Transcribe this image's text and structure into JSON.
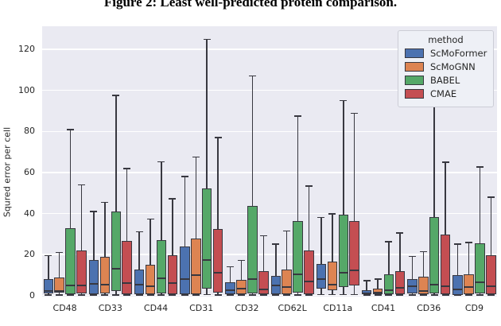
{
  "figure": {
    "title": "Figure 2: Least well-predicted protein comparison."
  },
  "chart_data": {
    "type": "boxplot",
    "title": "Figure 2: Least well-predicted protein comparison.",
    "ylabel": "Squred error per cell",
    "xlabel": "",
    "ylim": [
      -0.5,
      131.3
    ],
    "yticks": [
      0,
      20,
      40,
      60,
      80,
      100,
      120
    ],
    "grid": "horizontal-white-on-gray",
    "legend_title": "method",
    "legend_position": "upper-right",
    "categories": [
      "CD48",
      "CD33",
      "CD44",
      "CD31",
      "CD32",
      "CD62L",
      "CD11a",
      "CD41",
      "CD36",
      "CD9"
    ],
    "box_format": [
      "whisker_low",
      "q1",
      "median",
      "q3",
      "whisker_high"
    ],
    "series": [
      {
        "name": "ScMoFormer",
        "color": "#4c72b0",
        "boxes": [
          [
            0.3,
            1.0,
            2.1,
            7.9,
            19.5
          ],
          [
            0.3,
            0.8,
            5.7,
            17.3,
            41
          ],
          [
            0.3,
            0.8,
            5.3,
            12.6,
            31
          ],
          [
            0.3,
            0.5,
            7.9,
            24,
            58
          ],
          [
            0.2,
            0.8,
            2.7,
            6.3,
            14
          ],
          [
            0.3,
            0.8,
            4.9,
            9.4,
            25
          ],
          [
            0.5,
            3.4,
            7.9,
            15.2,
            38
          ],
          [
            0.2,
            0.5,
            1.2,
            2.7,
            7.2
          ],
          [
            0.3,
            0.9,
            4.4,
            8.1,
            19
          ],
          [
            0.3,
            0.4,
            3.0,
            9.8,
            25
          ]
        ]
      },
      {
        "name": "ScMoGNN",
        "color": "#dd8452",
        "boxes": [
          [
            0.3,
            1.4,
            2.4,
            8.9,
            21
          ],
          [
            0.3,
            1.2,
            5.3,
            18.8,
            45.5
          ],
          [
            0.3,
            0.5,
            4.6,
            15,
            37.3
          ],
          [
            0.3,
            0.5,
            9.8,
            27.9,
            67.6
          ],
          [
            0.2,
            0.5,
            3.4,
            7.5,
            17.2
          ],
          [
            0.3,
            0.5,
            4.0,
            12.6,
            31.4
          ],
          [
            0.5,
            2.7,
            5.2,
            16.5,
            39.8
          ],
          [
            0.2,
            0.5,
            1.3,
            3.4,
            8.1
          ],
          [
            0.3,
            0.7,
            2.1,
            9.2,
            21.4
          ],
          [
            0.3,
            0.5,
            4.0,
            10.5,
            25.9
          ]
        ]
      },
      {
        "name": "BABEL",
        "color": "#55a868",
        "boxes": [
          [
            0.3,
            0.8,
            4.9,
            33,
            81
          ],
          [
            0.3,
            2.1,
            13,
            40.8,
            97.5
          ],
          [
            0.3,
            1.0,
            8.5,
            27.2,
            65.3
          ],
          [
            0.5,
            3.4,
            17.5,
            52.4,
            125
          ],
          [
            0.3,
            1.0,
            8.1,
            43.6,
            107
          ],
          [
            0.3,
            1.4,
            10.5,
            36.3,
            87.5
          ],
          [
            0.5,
            4.0,
            11.3,
            39.5,
            95
          ],
          [
            0.2,
            0.7,
            2.7,
            10.5,
            26.2
          ],
          [
            0.3,
            1.0,
            5.3,
            38.2,
            93
          ],
          [
            0.3,
            1.0,
            6.6,
            25.6,
            62.7
          ]
        ]
      },
      {
        "name": "CMAE",
        "color": "#c44e52",
        "boxes": [
          [
            0.3,
            1.2,
            4.9,
            22,
            54
          ],
          [
            0.3,
            0.5,
            6.2,
            26.5,
            62
          ],
          [
            0.3,
            0.5,
            5.9,
            19.7,
            47.2
          ],
          [
            0.3,
            1.4,
            11.1,
            32.4,
            77
          ],
          [
            0.2,
            0.5,
            3.0,
            12,
            29.2
          ],
          [
            0.3,
            0.5,
            6.9,
            21.8,
            53.3
          ],
          [
            0.5,
            4.9,
            12.4,
            36.5,
            88.8
          ],
          [
            0.2,
            0.7,
            3.6,
            12,
            30.5
          ],
          [
            0.3,
            0.5,
            4.4,
            29.8,
            65
          ],
          [
            0.3,
            0.5,
            4.6,
            19.7,
            48
          ]
        ]
      }
    ],
    "colors": {
      "plot_background": "#eaeaf2",
      "gridline": "#ffffff",
      "box_edge": "#383840",
      "tick_label": "#262626"
    }
  }
}
